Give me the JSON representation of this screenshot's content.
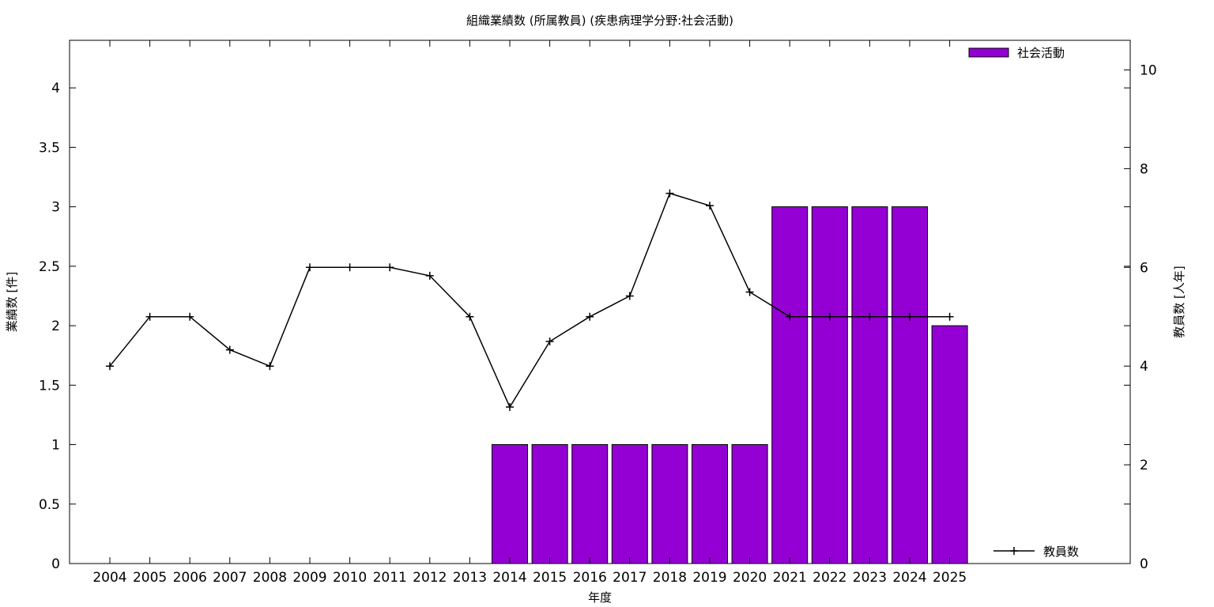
{
  "chart_data": {
    "type": "bar",
    "title": "組織業績数 (所属教員) (疾患病理学分野:社会活動)",
    "xlabel": "年度",
    "ylabel": "業績数 [件]",
    "y2label": "教員数 [人年]",
    "categories": [
      "2004",
      "2005",
      "2006",
      "2007",
      "2008",
      "2009",
      "2010",
      "2011",
      "2012",
      "2013",
      "2014",
      "2015",
      "2016",
      "2017",
      "2018",
      "2019",
      "2020",
      "2021",
      "2022",
      "2023",
      "2024",
      "2025"
    ],
    "y_ticks": [
      "0",
      "0.5",
      "1",
      "1.5",
      "2",
      "2.5",
      "3",
      "3.5",
      "4"
    ],
    "y2_ticks": [
      "0",
      "2",
      "4",
      "6",
      "8",
      "10"
    ],
    "ylim": [
      0,
      4.4
    ],
    "y2lim": [
      0,
      10.6
    ],
    "grid": false,
    "series": [
      {
        "name": "社会活動",
        "type": "bar",
        "axis": "left",
        "color": "#9400d3",
        "values": [
          0,
          0,
          0,
          0,
          0,
          0,
          0,
          0,
          0,
          0,
          1,
          1,
          1,
          1,
          1,
          1,
          1,
          3,
          3,
          3,
          3,
          2
        ]
      },
      {
        "name": "教員数",
        "type": "line",
        "axis": "right",
        "color": "#000000",
        "marker": "plus",
        "values": [
          4,
          5,
          5,
          4.33,
          4,
          6,
          6,
          6,
          5.83,
          5,
          3.17,
          4.5,
          5,
          5.42,
          7.5,
          7.25,
          5.5,
          5,
          5,
          5,
          5,
          5
        ]
      }
    ],
    "legend": {
      "bar_position": "top-right",
      "line_position": "bottom-right"
    }
  }
}
